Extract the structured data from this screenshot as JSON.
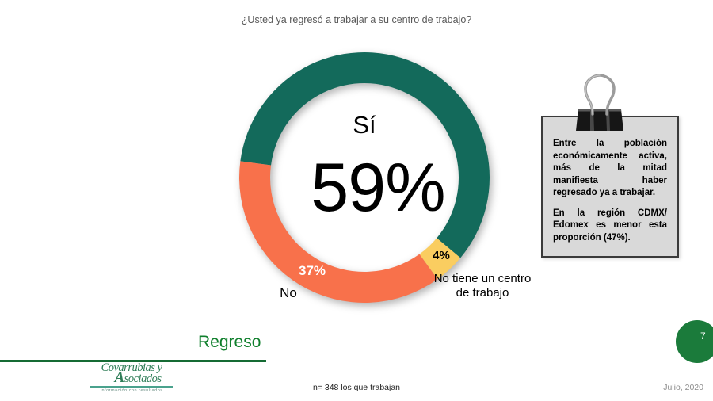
{
  "slide": {
    "title": "¿Usted ya regresó a trabajar a su centro de trabajo?",
    "section_label": "Regreso",
    "sample_note": "n= 348 los que trabajan",
    "date_label": "Julio, 2020",
    "page_number": "7"
  },
  "logo": {
    "name_line1": "Covarrubias y",
    "name_line2_initial": "A",
    "name_line2_rest": "sociados",
    "tagline": "Información con resultados"
  },
  "note_box": {
    "paragraphs": [
      "Entre la población económicamente activa, más de la mitad manifiesta haber regresado ya a trabajar.",
      "En la región CDMX/ Edomex es menor esta proporción (47%)."
    ]
  },
  "chart_data": {
    "type": "pie",
    "subtype": "donut",
    "title": "¿Usted ya regresó a trabajar a su centro de trabajo?",
    "direction": "clockwise",
    "start_angle_from_top_deg": -82.5,
    "outer_radius_px": 158,
    "inner_radius_px": 119,
    "center_label": {
      "category": "Sí",
      "value": "59%"
    },
    "segments": [
      {
        "label": "Sí",
        "value": 59,
        "data_label": "59%",
        "color": "#136A5B"
      },
      {
        "label": "No tiene un centro de trabajo",
        "value": 4,
        "data_label": "4%",
        "color": "#FACD60"
      },
      {
        "label": "No",
        "value": 37,
        "data_label": "37%",
        "color": "#F8714B"
      }
    ]
  },
  "theme": {
    "accent_green": "#0F7F2C",
    "line_green": "#156B34",
    "page_circle_green": "#1B7B3B",
    "title_gray": "#595959",
    "note_bg": "#D9D9D9"
  }
}
